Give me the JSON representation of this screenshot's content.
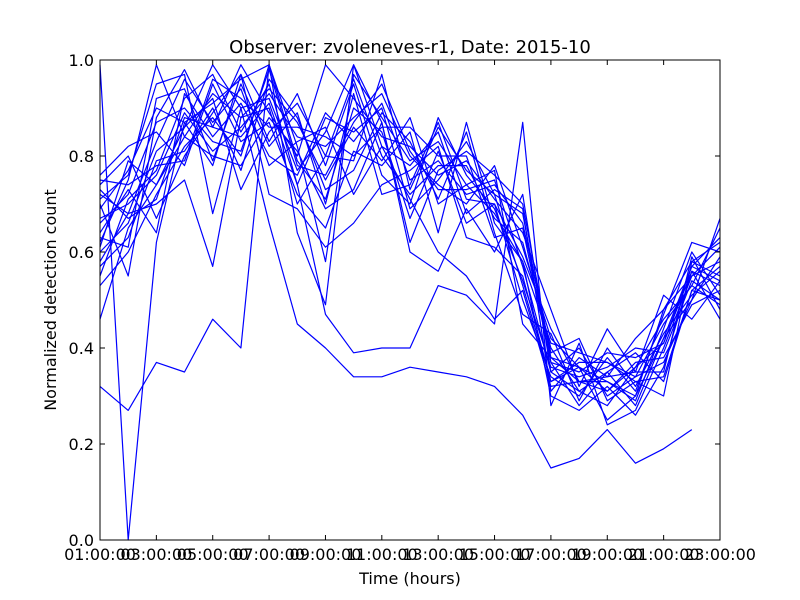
{
  "chart_data": {
    "type": "line",
    "title": "Observer: zvoleneves-r1, Date: 2015-10",
    "xlabel": "Time (hours)",
    "ylabel": "Normalized detection count",
    "xlim": [
      1,
      23
    ],
    "ylim": [
      0,
      1
    ],
    "x_tick_values": [
      1,
      3,
      5,
      7,
      9,
      11,
      13,
      15,
      17,
      19,
      21,
      23
    ],
    "x_tick_labels": [
      "01:00:00",
      "03:00:00",
      "05:00:00",
      "07:00:00",
      "09:00:00",
      "11:00:00",
      "13:00:00",
      "15:00:00",
      "17:00:00",
      "19:00:00",
      "21:00:00",
      "23:00:00"
    ],
    "y_tick_values": [
      0,
      0.2,
      0.4,
      0.6,
      0.8,
      1.0
    ],
    "y_tick_labels": [
      "0.0",
      "0.2",
      "0.4",
      "0.6",
      "0.8",
      "1.0"
    ],
    "grid": false,
    "line_color": "#0000ff",
    "x": [
      1,
      2,
      3,
      4,
      5,
      6,
      7,
      8,
      9,
      10,
      11,
      12,
      13,
      14,
      15,
      16,
      17,
      18,
      19,
      20,
      21,
      22,
      23
    ],
    "series": [
      {
        "values": [
          0.99,
          0.0,
          0.62,
          0.87,
          0.91,
          0.96,
          0.99,
          0.82,
          0.58,
          0.97,
          0.88,
          0.79,
          0.83,
          0.74,
          0.77,
          0.45,
          0.38,
          0.33,
          0.31,
          0.36,
          0.41,
          0.56,
          0.53
        ]
      },
      {
        "values": [
          0.32,
          0.27,
          0.37,
          0.35,
          0.46,
          0.4,
          0.99,
          0.64,
          0.49,
          0.99,
          0.82,
          0.71,
          0.6,
          0.55,
          0.46,
          0.52,
          0.32,
          0.33,
          0.34,
          0.42,
          0.48,
          0.58,
          0.55
        ]
      },
      {
        "values": [
          0.46,
          0.65,
          0.74,
          0.86,
          0.99,
          0.9,
          0.66,
          0.45,
          0.4,
          0.34,
          0.34,
          0.36,
          0.35,
          0.34,
          0.32,
          0.26,
          0.15,
          0.17,
          0.23,
          0.16,
          0.19,
          0.23,
          null
        ]
      },
      {
        "values": [
          0.55,
          0.71,
          0.77,
          0.92,
          0.97,
          0.85,
          0.95,
          0.74,
          0.47,
          0.39,
          0.4,
          0.4,
          0.53,
          0.51,
          0.45,
          0.87,
          0.28,
          0.41,
          0.24,
          0.27,
          0.4,
          0.55,
          0.58
        ]
      },
      {
        "values": [
          0.71,
          0.76,
          0.95,
          0.97,
          0.68,
          0.9,
          0.92,
          0.77,
          0.85,
          0.99,
          0.87,
          0.62,
          0.77,
          0.81,
          0.76,
          0.7,
          0.38,
          0.36,
          0.25,
          0.3,
          0.42,
          0.57,
          0.63
        ]
      },
      {
        "values": [
          0.62,
          0.75,
          0.99,
          0.84,
          0.8,
          0.78,
          0.88,
          0.81,
          0.69,
          0.73,
          0.87,
          0.6,
          0.56,
          0.69,
          0.6,
          0.72,
          0.35,
          0.31,
          0.35,
          0.28,
          0.42,
          0.5,
          0.67
        ]
      },
      {
        "values": [
          0.7,
          0.55,
          0.88,
          0.98,
          0.86,
          0.99,
          0.89,
          0.8,
          0.99,
          0.92,
          0.84,
          0.82,
          0.76,
          0.79,
          0.71,
          0.64,
          0.48,
          0.32,
          0.44,
          0.35,
          0.51,
          0.46,
          0.54
        ]
      },
      {
        "values": [
          0.58,
          0.68,
          0.7,
          0.75,
          0.57,
          0.88,
          0.94,
          0.87,
          0.75,
          0.86,
          0.79,
          0.88,
          0.7,
          0.74,
          0.68,
          0.58,
          0.41,
          0.39,
          0.37,
          0.34,
          0.45,
          0.53,
          0.49
        ]
      },
      {
        "values": [
          0.74,
          0.8,
          0.67,
          0.8,
          0.89,
          0.97,
          0.72,
          0.69,
          0.61,
          0.66,
          0.74,
          0.77,
          0.82,
          0.63,
          0.61,
          0.55,
          0.33,
          0.36,
          0.33,
          0.29,
          0.44,
          0.6,
          0.51
        ]
      },
      {
        "values": [
          0.6,
          0.66,
          0.81,
          0.86,
          0.92,
          0.73,
          0.85,
          0.91,
          0.8,
          0.79,
          0.97,
          0.73,
          0.86,
          0.77,
          0.72,
          0.68,
          0.37,
          0.28,
          0.35,
          0.39,
          0.33,
          0.52,
          0.57
        ]
      },
      {
        "values": [
          0.67,
          0.7,
          0.76,
          0.89,
          0.81,
          0.86,
          0.93,
          0.84,
          0.82,
          0.88,
          0.93,
          0.8,
          0.74,
          0.7,
          0.78,
          0.61,
          0.42,
          0.36,
          0.31,
          0.37,
          0.38,
          0.49,
          0.52
        ]
      },
      {
        "values": [
          0.53,
          0.6,
          0.72,
          0.82,
          0.88,
          0.8,
          0.99,
          0.79,
          0.71,
          0.9,
          0.85,
          0.67,
          0.81,
          0.66,
          0.7,
          0.5,
          0.34,
          0.3,
          0.38,
          0.31,
          0.47,
          0.62,
          0.6
        ]
      },
      {
        "values": [
          0.76,
          0.82,
          0.85,
          0.78,
          0.95,
          0.83,
          0.87,
          0.72,
          0.65,
          0.81,
          0.78,
          0.85,
          0.64,
          0.87,
          0.66,
          0.58,
          0.3,
          0.27,
          0.32,
          0.26,
          0.36,
          0.56,
          0.46
        ]
      },
      {
        "values": [
          0.64,
          0.73,
          0.64,
          0.93,
          0.84,
          0.91,
          0.8,
          0.76,
          0.89,
          0.83,
          0.91,
          0.75,
          0.79,
          0.72,
          0.74,
          0.66,
          0.39,
          0.42,
          0.29,
          0.33,
          0.3,
          0.58,
          0.62
        ]
      },
      {
        "values": [
          0.69,
          0.77,
          0.9,
          0.87,
          0.78,
          0.97,
          0.83,
          0.93,
          0.78,
          0.95,
          0.76,
          0.7,
          0.88,
          0.76,
          0.69,
          0.54,
          0.36,
          0.34,
          0.36,
          0.4,
          0.39,
          0.54,
          0.5
        ]
      },
      {
        "values": [
          0.57,
          0.63,
          0.79,
          0.81,
          0.9,
          0.77,
          0.96,
          0.88,
          0.73,
          0.77,
          0.89,
          0.83,
          0.71,
          0.85,
          0.64,
          0.47,
          0.43,
          0.29,
          0.4,
          0.32,
          0.43,
          0.51,
          0.56
        ]
      },
      {
        "values": [
          0.72,
          0.68,
          0.83,
          0.96,
          0.87,
          0.94,
          0.78,
          0.83,
          0.86,
          0.72,
          0.82,
          0.78,
          0.85,
          0.68,
          0.73,
          0.69,
          0.31,
          0.38,
          0.34,
          0.35,
          0.35,
          0.59,
          0.48
        ]
      },
      {
        "values": [
          0.61,
          0.79,
          0.74,
          0.84,
          0.93,
          0.88,
          0.9,
          0.7,
          0.8,
          0.96,
          0.8,
          0.72,
          0.78,
          0.78,
          0.67,
          0.62,
          0.4,
          0.31,
          0.28,
          0.36,
          0.46,
          0.53,
          0.65
        ]
      },
      {
        "values": [
          0.66,
          0.72,
          0.87,
          0.9,
          0.83,
          0.81,
          0.98,
          0.78,
          0.76,
          0.87,
          0.95,
          0.81,
          0.73,
          0.73,
          0.75,
          0.57,
          0.35,
          0.4,
          0.3,
          0.34,
          0.37,
          0.5,
          0.59
        ]
      },
      {
        "values": [
          0.75,
          0.74,
          0.78,
          0.79,
          0.96,
          0.92,
          0.86,
          0.86,
          0.84,
          0.8,
          0.86,
          0.86,
          0.8,
          0.8,
          0.63,
          0.65,
          0.37,
          0.35,
          0.39,
          0.38,
          0.41,
          0.57,
          0.54
        ]
      },
      {
        "values": [
          0.63,
          0.61,
          0.92,
          0.94,
          0.79,
          0.95,
          0.82,
          0.89,
          0.7,
          0.93,
          0.72,
          0.74,
          0.87,
          0.71,
          0.7,
          0.59,
          0.44,
          0.33,
          0.33,
          0.3,
          0.48,
          0.55,
          0.61
        ]
      },
      {
        "values": [
          0.73,
          0.67,
          0.71,
          0.88,
          0.86,
          0.84,
          0.91,
          0.74,
          0.88,
          0.85,
          0.9,
          0.69,
          0.75,
          0.83,
          0.72,
          0.53,
          0.33,
          0.37,
          0.37,
          0.33,
          0.34,
          0.52,
          0.5
        ]
      }
    ]
  }
}
